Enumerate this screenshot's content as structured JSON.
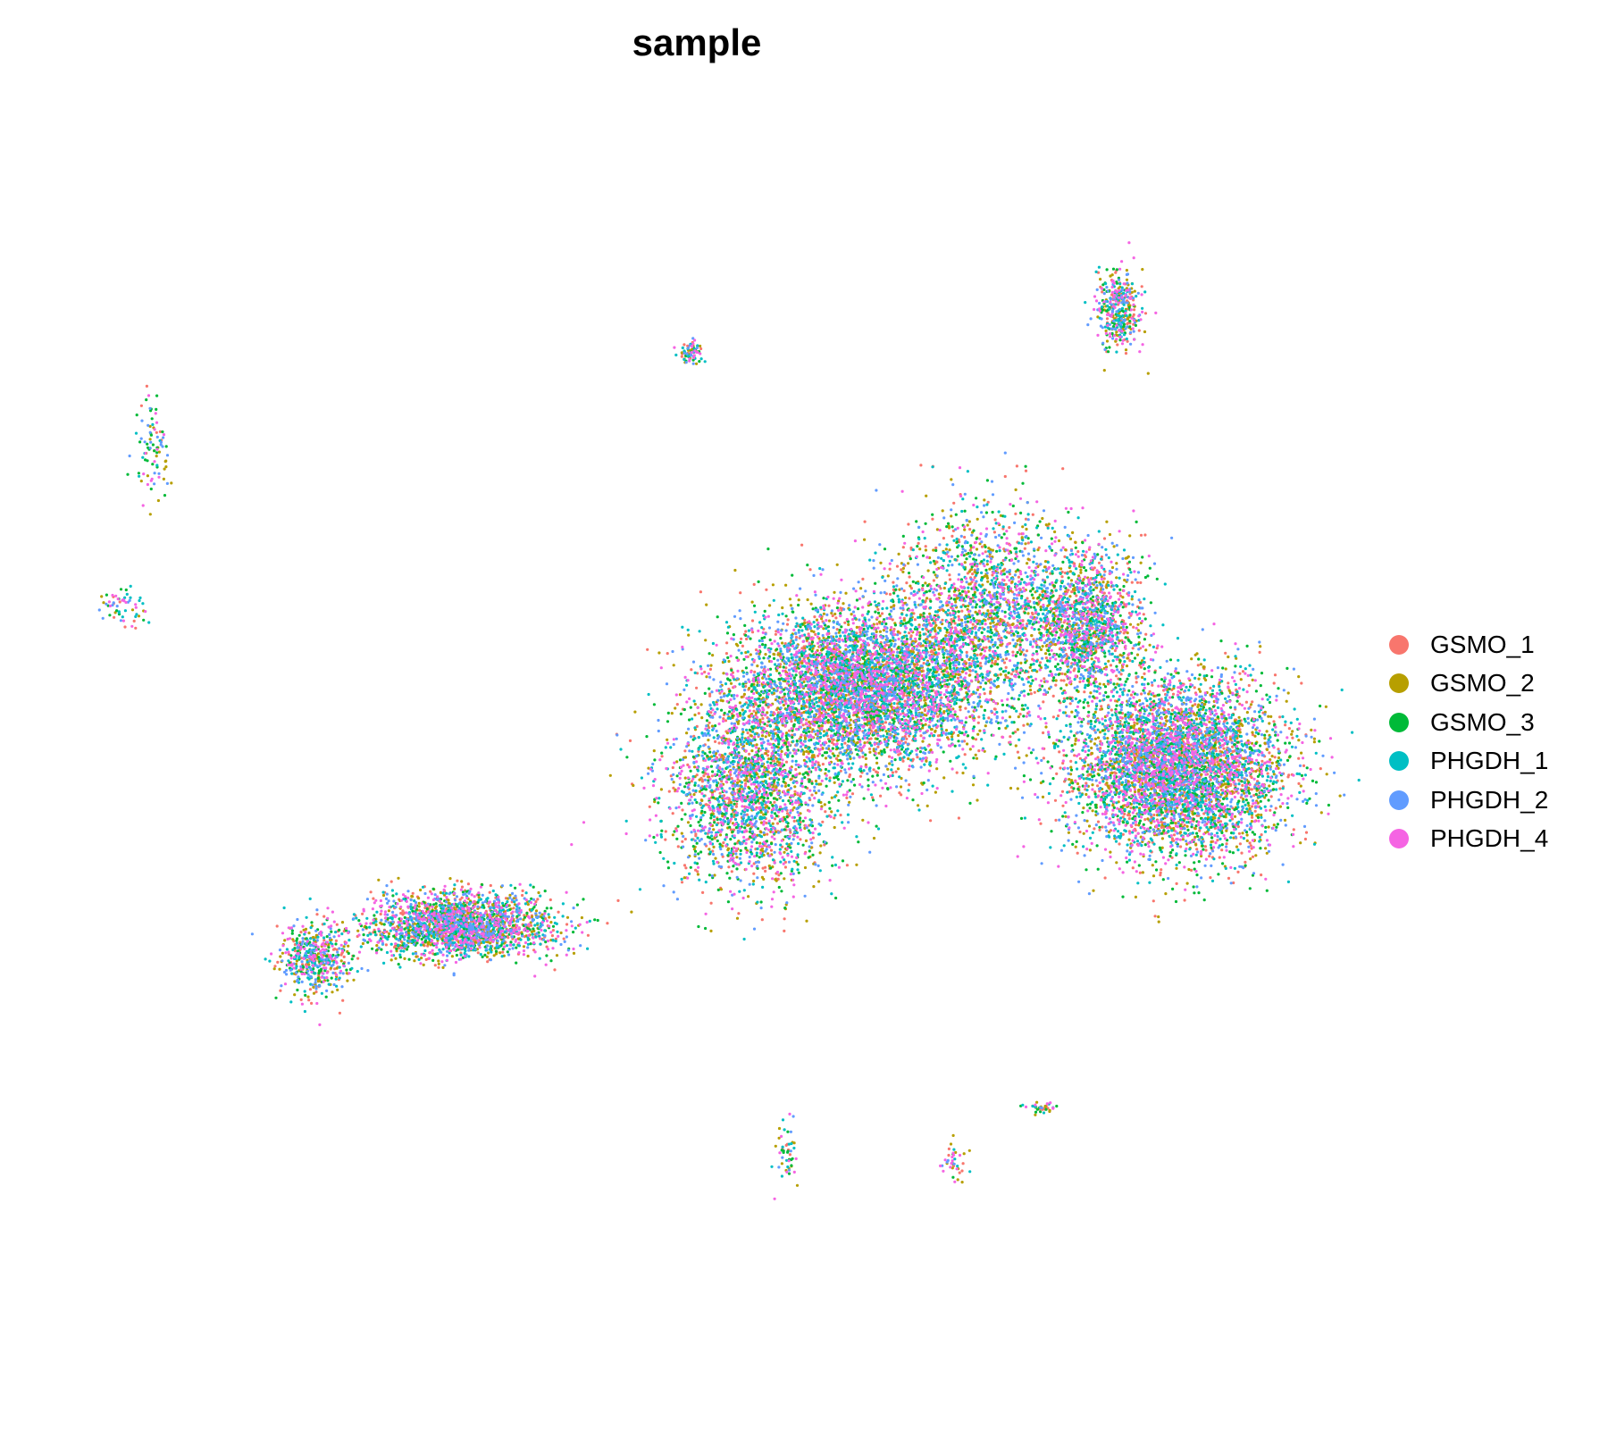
{
  "chart_data": {
    "type": "scatter",
    "title": "sample",
    "xlabel": "",
    "ylabel": "",
    "grid": false,
    "axes_visible": false,
    "legend_placement": "right",
    "xlim": [
      -12,
      12
    ],
    "ylim": [
      -12,
      10
    ],
    "series": [
      {
        "name": "GSMO_1",
        "color": "#F8766D"
      },
      {
        "name": "GSMO_2",
        "color": "#B79F00"
      },
      {
        "name": "GSMO_3",
        "color": "#00BA38"
      },
      {
        "name": "PHGDH_1",
        "color": "#00BFC4"
      },
      {
        "name": "PHGDH_2",
        "color": "#619CFF"
      },
      {
        "name": "PHGDH_4",
        "color": "#F564E3"
      }
    ],
    "clusters": [
      {
        "center": [
          3.2,
          -0.2
        ],
        "spread": [
          2.2,
          1.3
        ],
        "count": 5200
      },
      {
        "center": [
          5.6,
          1.2
        ],
        "spread": [
          1.6,
          1.6
        ],
        "count": 1800
      },
      {
        "center": [
          9.2,
          -1.6
        ],
        "spread": [
          1.9,
          1.4
        ],
        "count": 5000
      },
      {
        "center": [
          1.0,
          -2.0
        ],
        "spread": [
          1.5,
          1.6
        ],
        "count": 2200
      },
      {
        "center": [
          7.5,
          0.9
        ],
        "spread": [
          0.9,
          1.2
        ],
        "count": 1400
      },
      {
        "center": [
          -4.5,
          -4.4
        ],
        "spread": [
          1.6,
          0.5
        ],
        "count": 2200
      },
      {
        "center": [
          -7.3,
          -5.0
        ],
        "spread": [
          0.6,
          0.6
        ],
        "count": 500
      },
      {
        "center": [
          8.1,
          6.4
        ],
        "spread": [
          0.4,
          0.6
        ],
        "count": 400
      },
      {
        "center": [
          -0.1,
          5.7
        ],
        "spread": [
          0.2,
          0.2
        ],
        "count": 80
      },
      {
        "center": [
          -11.0,
          1.2
        ],
        "spread": [
          0.4,
          0.3
        ],
        "count": 60
      },
      {
        "center": [
          -10.4,
          4.0
        ],
        "spread": [
          0.3,
          0.8
        ],
        "count": 90
      },
      {
        "center": [
          1.7,
          -8.4
        ],
        "spread": [
          0.2,
          0.5
        ],
        "count": 50
      },
      {
        "center": [
          4.9,
          -8.6
        ],
        "spread": [
          0.2,
          0.3
        ],
        "count": 40
      },
      {
        "center": [
          6.6,
          -7.6
        ],
        "spread": [
          0.3,
          0.1
        ],
        "count": 40
      }
    ],
    "points_per_series": "mixed uniformly across all six samples"
  }
}
